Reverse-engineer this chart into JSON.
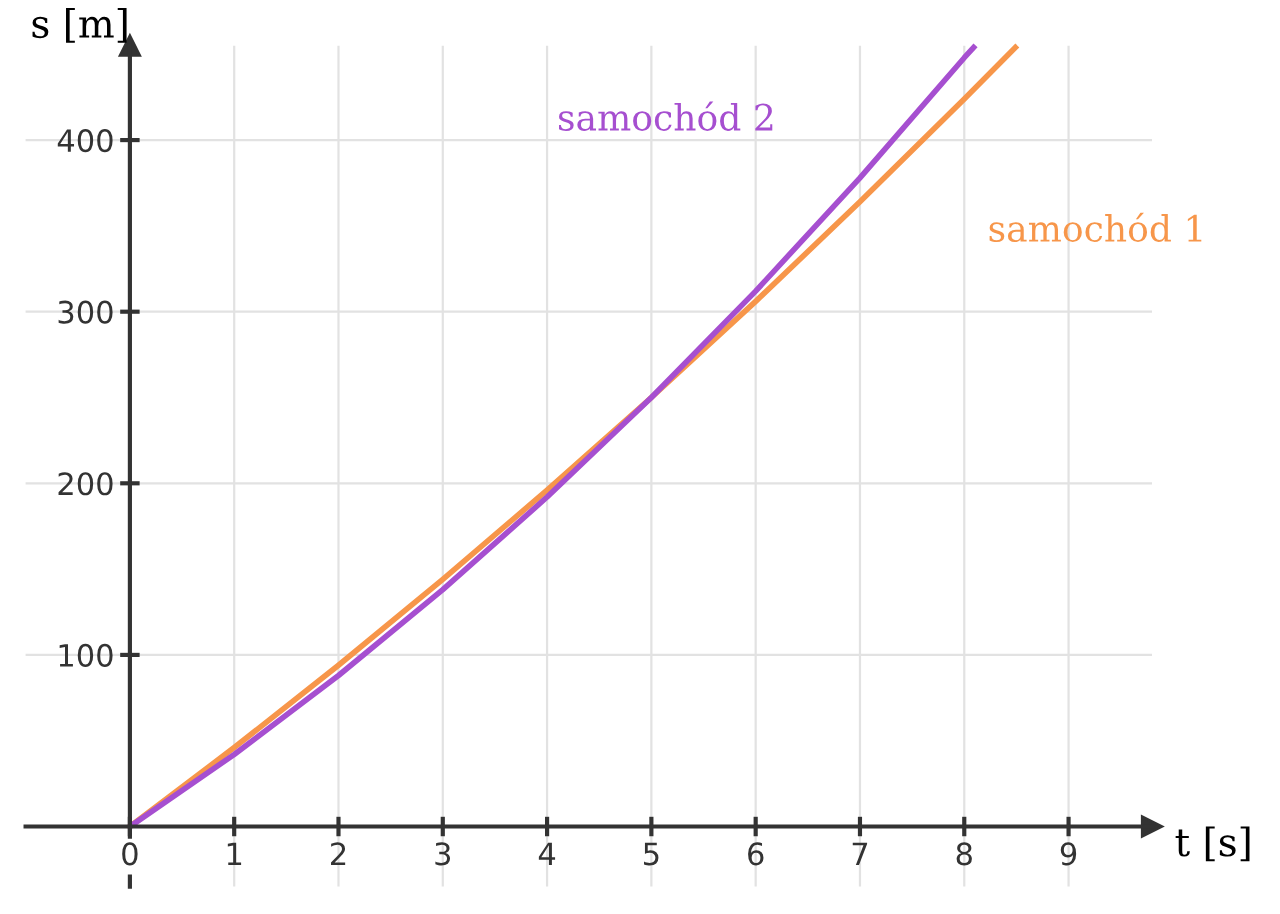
{
  "chart_data": {
    "type": "line",
    "xlabel": "t [s]",
    "ylabel": "s [m]",
    "xlim": [
      -1,
      9.8
    ],
    "ylim": [
      -35,
      455
    ],
    "xticks": [
      0,
      1,
      2,
      3,
      4,
      5,
      6,
      7,
      8,
      9
    ],
    "yticks": [
      100,
      200,
      300,
      400
    ],
    "grid": true,
    "legend": false,
    "marker": "none",
    "line_style": "solid",
    "series": [
      {
        "name": "samochód 1",
        "color": "#f7964a",
        "x": [
          0,
          1,
          2,
          3,
          4,
          5,
          6,
          7,
          8,
          8.49
        ],
        "values": [
          0,
          46,
          94,
          144,
          196,
          250,
          306,
          364,
          424,
          454
        ]
      },
      {
        "name": "samochód 2",
        "color": "#a64fd0",
        "x": [
          0,
          1,
          2,
          3,
          4,
          5,
          6,
          7,
          8,
          8.09
        ],
        "values": [
          0,
          42,
          88,
          138,
          192,
          250,
          312,
          378,
          448,
          454
        ]
      }
    ]
  }
}
